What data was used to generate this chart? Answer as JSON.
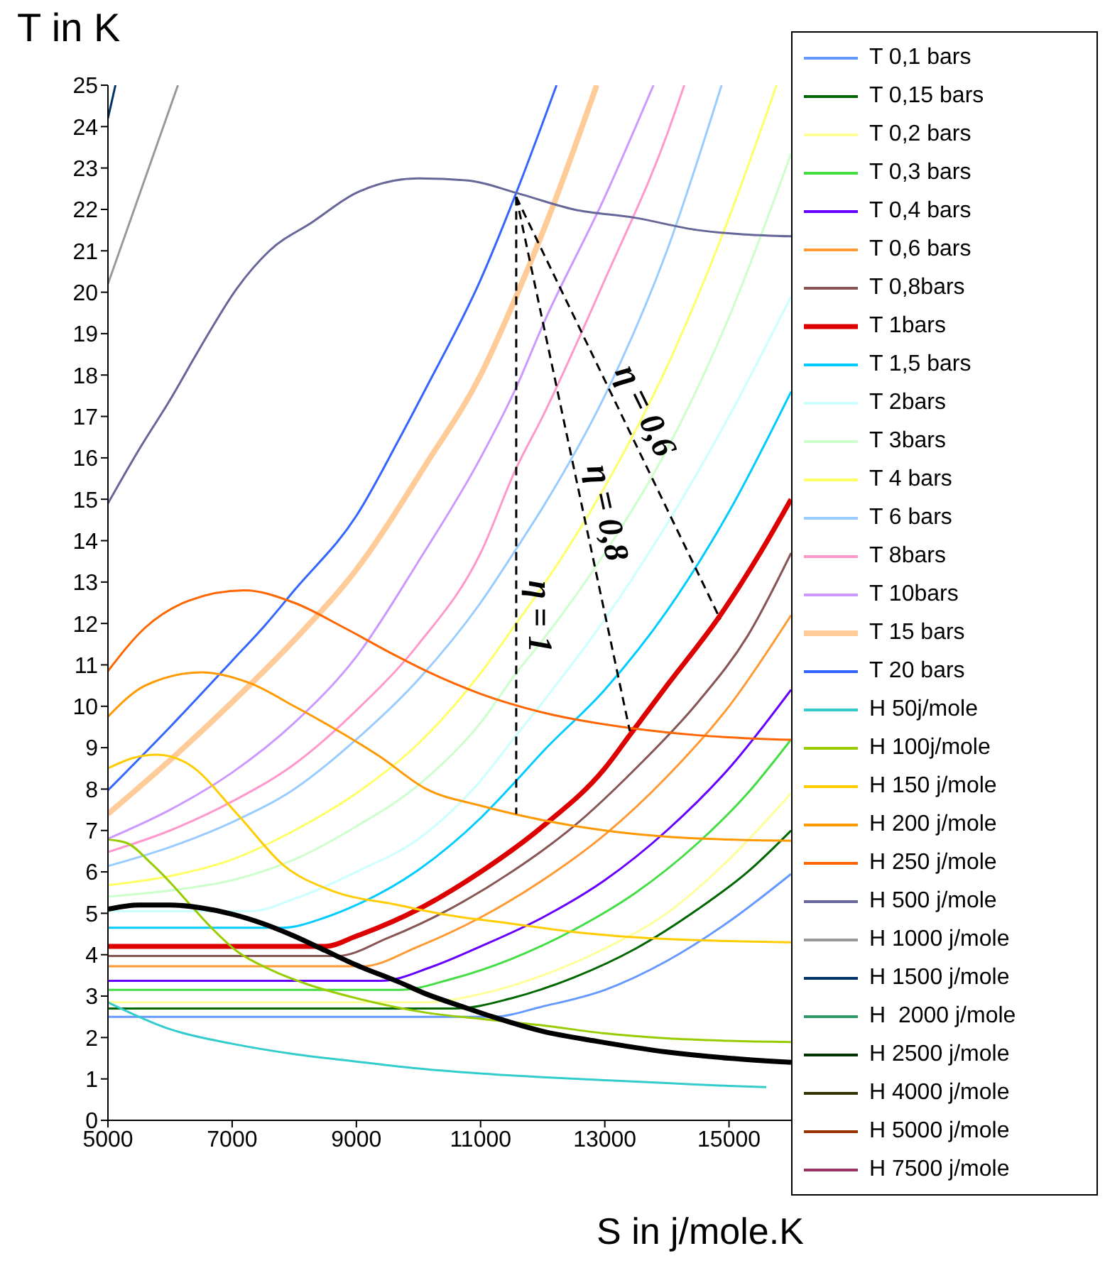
{
  "chart_data": {
    "type": "line",
    "xlabel": "S in j/mole.K",
    "ylabel": "T in K",
    "xlim": [
      5000,
      16000
    ],
    "xticks": [
      5000,
      7000,
      9000,
      11000,
      13000,
      15000
    ],
    "ylim": [
      0,
      25
    ],
    "yticks": [
      0,
      1,
      2,
      3,
      4,
      5,
      6,
      7,
      8,
      9,
      10,
      11,
      12,
      13,
      14,
      15,
      16,
      17,
      18,
      19,
      20,
      21,
      22,
      23,
      24,
      25
    ],
    "legend": "right",
    "line_style": "solid",
    "marker": "none",
    "annotations": [
      "η = 1",
      "η = 0,8",
      "η = 0,6"
    ],
    "series": [
      {
        "name": "T 0,1 bars",
        "color": "#6699ff",
        "x": [
          5000,
          11200,
          12000,
          13000,
          14000,
          15000,
          16000
        ],
        "values": [
          2.5,
          2.5,
          2.75,
          3.15,
          3.85,
          4.8,
          5.95
        ]
      },
      {
        "name": "T 0,15 bars",
        "color": "#006600",
        "x": [
          5000,
          10600,
          11500,
          12500,
          13500,
          14500,
          15300,
          16000
        ],
        "values": [
          2.7,
          2.7,
          2.95,
          3.45,
          4.15,
          5.1,
          6.0,
          7.0
        ]
      },
      {
        "name": "T 0,2 bars",
        "color": "#ffff99",
        "x": [
          5000,
          10100,
          11000,
          12000,
          13000,
          14000,
          15000,
          16000
        ],
        "values": [
          2.85,
          2.85,
          3.05,
          3.5,
          4.15,
          5.0,
          6.3,
          7.9
        ]
      },
      {
        "name": "T 0,3 bars",
        "color": "#44dd44",
        "x": [
          5000,
          9700,
          10500,
          11500,
          12500,
          13500,
          14500,
          15300,
          16000
        ],
        "values": [
          3.15,
          3.15,
          3.4,
          3.9,
          4.6,
          5.5,
          6.7,
          7.9,
          9.2
        ]
      },
      {
        "name": "T 0,4 bars",
        "color": "#6600ff",
        "x": [
          5000,
          9400,
          10200,
          11000,
          12000,
          13000,
          14000,
          15000,
          16000
        ],
        "values": [
          3.37,
          3.37,
          3.7,
          4.2,
          4.9,
          5.8,
          7.0,
          8.5,
          10.4
        ]
      },
      {
        "name": "T 0,6 bars",
        "color": "#ff9933",
        "x": [
          5000,
          9100,
          10000,
          11000,
          12000,
          13000,
          14000,
          15000,
          16000
        ],
        "values": [
          3.72,
          3.72,
          4.2,
          4.9,
          5.8,
          6.9,
          8.3,
          10.0,
          12.2
        ]
      },
      {
        "name": "T 0,8bars",
        "color": "#885555",
        "x": [
          5000,
          8700,
          9500,
          10500,
          11500,
          12500,
          13500,
          14500,
          15300,
          16000
        ],
        "values": [
          3.97,
          3.97,
          4.4,
          5.1,
          6.0,
          7.1,
          8.5,
          10.1,
          11.7,
          13.7
        ]
      },
      {
        "name": "T 1bars",
        "color": "#dd0000",
        "x": [
          5000,
          8500,
          9000,
          10000,
          11000,
          12000,
          13000,
          13400,
          14000,
          14860,
          15500,
          16000
        ],
        "values": [
          4.2,
          4.2,
          4.45,
          5.1,
          6.0,
          7.1,
          8.5,
          9.3,
          10.5,
          12.2,
          13.7,
          15.0
        ]
      },
      {
        "name": "T 1,5 bars",
        "color": "#00ccff",
        "x": [
          5000,
          7800,
          8500,
          9000,
          10000,
          11000,
          11574,
          12000,
          13000,
          14000,
          15000,
          16000
        ],
        "values": [
          4.65,
          4.65,
          4.9,
          5.2,
          6.05,
          7.3,
          8.2,
          8.9,
          10.4,
          12.3,
          14.7,
          17.6
        ]
      },
      {
        "name": "T 2bars",
        "color": "#ccffff",
        "x": [
          5000,
          7300,
          8000,
          9000,
          10000,
          11000,
          11574,
          12000,
          13000,
          14000,
          15000,
          16000
        ],
        "values": [
          5.05,
          5.05,
          5.35,
          6.0,
          6.8,
          8.2,
          9.3,
          10.1,
          12.1,
          14.4,
          17.0,
          19.9
        ]
      },
      {
        "name": "T 3bars",
        "color": "#ccffcc",
        "x": [
          5000,
          6000,
          7000,
          8000,
          9000,
          10000,
          11000,
          11574,
          12000,
          13000,
          14000,
          15000,
          16000
        ],
        "values": [
          5.4,
          5.55,
          5.8,
          6.3,
          7.1,
          8.1,
          9.6,
          10.8,
          11.6,
          13.7,
          16.2,
          19.4,
          23.35
        ]
      },
      {
        "name": "T 4 bars",
        "color": "#ffff66",
        "x": [
          5000,
          6000,
          7000,
          8000,
          9000,
          10000,
          11000,
          11574,
          12000,
          13000,
          14000,
          15000,
          15766
        ],
        "values": [
          5.68,
          5.9,
          6.3,
          7.0,
          7.9,
          9.1,
          10.8,
          12.0,
          12.9,
          15.3,
          18.2,
          21.8,
          25
        ]
      },
      {
        "name": "T 6 bars",
        "color": "#99ccff",
        "x": [
          5000,
          6000,
          7000,
          8000,
          9000,
          10000,
          11000,
          11574,
          12000,
          13000,
          14000,
          14880
        ],
        "values": [
          6.14,
          6.6,
          7.2,
          8.0,
          9.2,
          10.65,
          12.5,
          13.8,
          14.8,
          17.5,
          21.0,
          25
        ]
      },
      {
        "name": "T 8bars",
        "color": "#ff99cc",
        "x": [
          5000,
          6000,
          7000,
          8000,
          9000,
          10000,
          11000,
          11574,
          12000,
          13000,
          14000,
          14280
        ],
        "values": [
          6.48,
          7.0,
          7.7,
          8.6,
          9.9,
          11.5,
          13.7,
          15.75,
          17.0,
          20.3,
          23.8,
          25
        ]
      },
      {
        "name": "T 10bars",
        "color": "#cc99ff",
        "x": [
          5000,
          6000,
          7000,
          8000,
          9000,
          10000,
          11000,
          11574,
          12000,
          13000,
          13784
        ],
        "values": [
          6.8,
          7.5,
          8.4,
          9.6,
          11.2,
          13.5,
          16.0,
          17.7,
          19.2,
          22.3,
          25
        ]
      },
      {
        "name": "T 15 bars",
        "color": "#ffcc99",
        "x": [
          5000,
          6000,
          7000,
          8000,
          9000,
          10127,
          11000,
          11574,
          12183,
          12870
        ],
        "values": [
          7.4,
          8.7,
          10.1,
          11.6,
          13.3,
          15.86,
          18.0,
          19.9,
          22.15,
          25
        ]
      },
      {
        "name": "T 20 bars",
        "color": "#3366ff",
        "x": [
          5000,
          6000,
          7000,
          7537,
          8000,
          9000,
          9670,
          10127,
          11000,
          11574,
          12223
        ],
        "values": [
          7.97,
          9.5,
          11.1,
          11.97,
          12.8,
          14.6,
          16.4,
          17.7,
          20.3,
          22.4,
          25
        ]
      },
      {
        "name": "H 50j/mole",
        "color": "#33cccc",
        "x": [
          5000,
          6000,
          7000,
          8000,
          9000,
          10000,
          11000,
          12000,
          13000,
          14000,
          15000,
          15600
        ],
        "values": [
          2.85,
          2.2,
          1.85,
          1.6,
          1.42,
          1.25,
          1.13,
          1.04,
          0.97,
          0.9,
          0.83,
          0.8
        ]
      },
      {
        "name": "H 100j/mole",
        "color": "#99cc00",
        "x": [
          5000,
          5300,
          5700,
          6000,
          6317,
          6700,
          7080,
          7600,
          8223,
          9000,
          10127,
          11000,
          11955,
          13000,
          14000,
          15000,
          16000
        ],
        "values": [
          6.78,
          6.7,
          6.2,
          5.75,
          5.22,
          4.6,
          4.08,
          3.65,
          3.28,
          2.95,
          2.6,
          2.45,
          2.3,
          2.1,
          1.98,
          1.92,
          1.89
        ]
      },
      {
        "name": "H 150 j/mole",
        "color": "#ffcc00",
        "x": [
          5000,
          5400,
          5783,
          6300,
          7080,
          7843,
          8600,
          9670,
          10500,
          11500,
          12500,
          13500,
          14500,
          16000
        ],
        "values": [
          8.5,
          8.75,
          8.83,
          8.6,
          7.4,
          6.14,
          5.55,
          5.2,
          4.95,
          4.75,
          4.55,
          4.42,
          4.35,
          4.3
        ]
      },
      {
        "name": "H 200 j/mole",
        "color": "#ff9900",
        "x": [
          5000,
          5600,
          6500,
          7300,
          8000,
          8600,
          9365,
          10127,
          11000,
          12000,
          13000,
          14000,
          15000,
          16000
        ],
        "values": [
          9.75,
          10.5,
          10.82,
          10.55,
          10.0,
          9.5,
          8.8,
          8.0,
          7.6,
          7.25,
          7.0,
          6.85,
          6.78,
          6.75
        ]
      },
      {
        "name": "H 250 j/mole",
        "color": "#ff6600",
        "x": [
          5000,
          5600,
          6300,
          7194,
          8000,
          8800,
          9600,
          10127,
          11000,
          12000,
          13480,
          14500,
          16000
        ],
        "values": [
          10.85,
          11.9,
          12.55,
          12.8,
          12.5,
          11.9,
          11.25,
          10.85,
          10.3,
          9.85,
          9.46,
          9.3,
          9.19
        ]
      },
      {
        "name": "H 500 j/mole",
        "color": "#666699",
        "x": [
          5000,
          5500,
          6000,
          6500,
          7080,
          7600,
          8298,
          9000,
          10000,
          10800,
          11574,
          12500,
          13480,
          14500,
          16000
        ],
        "values": [
          14.9,
          16.2,
          17.4,
          18.7,
          20.1,
          21.0,
          21.7,
          22.4,
          22.75,
          22.7,
          22.4,
          22.0,
          21.8,
          21.5,
          21.35
        ]
      },
      {
        "name": "H 1000 j/mole",
        "color": "#999999",
        "x": [
          5000,
          6127
        ],
        "values": [
          20.2,
          25
        ]
      },
      {
        "name": "H 1500 j/mole",
        "color": "#003366",
        "x": [
          5000,
          5121
        ],
        "values": [
          24.2,
          25
        ]
      },
      {
        "name": "H  2000 j/mole",
        "color": "#339966"
      },
      {
        "name": "H 2500 j/mole",
        "color": "#003300"
      },
      {
        "name": "H 4000 j/mole",
        "color": "#333300"
      },
      {
        "name": "H 5000 j/mole",
        "color": "#993300"
      },
      {
        "name": "H 7500 j/mole",
        "color": "#993366"
      },
      {
        "color": "#000000",
        "x": [
          5000,
          5500,
          6000,
          6500,
          7000,
          7500,
          8000,
          8500,
          9000,
          9670,
          10127,
          10700,
          11194,
          12000,
          12870,
          14000,
          15000,
          16000
        ],
        "values": [
          5.1,
          5.2,
          5.2,
          5.13,
          4.98,
          4.75,
          4.45,
          4.1,
          3.75,
          3.35,
          3.05,
          2.75,
          2.5,
          2.15,
          1.91,
          1.65,
          1.5,
          1.4
        ]
      },
      {
        "color": "#000000",
        "line_style": "dashed",
        "x": [
          11574,
          11574
        ],
        "values": [
          22.3,
          7.4
        ]
      },
      {
        "color": "#000000",
        "line_style": "dashed",
        "x": [
          11574,
          13403
        ],
        "values": [
          22.3,
          9.4
        ]
      },
      {
        "color": "#000000",
        "line_style": "dashed",
        "x": [
          11574,
          14860
        ],
        "values": [
          22.3,
          12.1
        ]
      }
    ]
  }
}
